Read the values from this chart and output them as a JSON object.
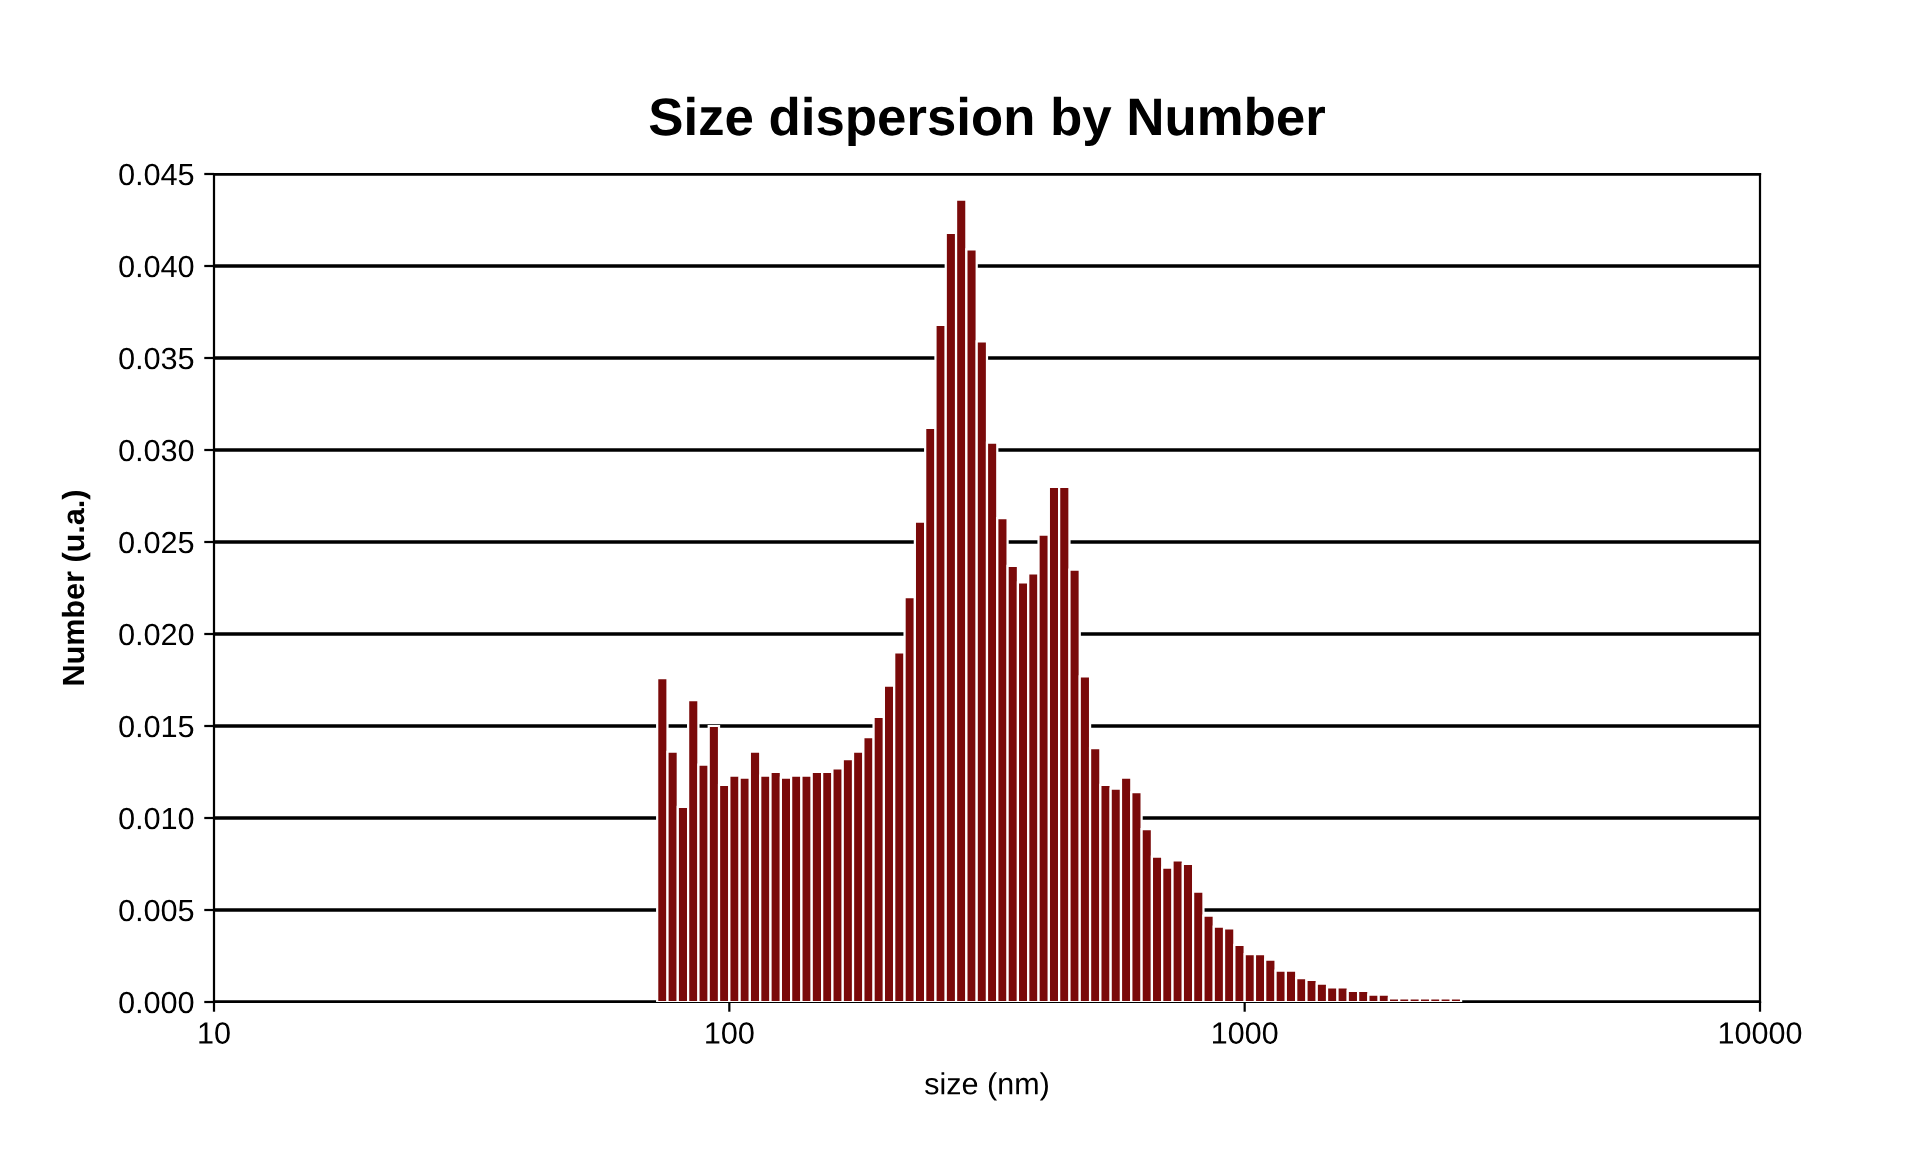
{
  "chart_data": {
    "type": "histogram",
    "title": "Size dispersion by Number",
    "xlabel": "size (nm)",
    "ylabel": "Number (u.a.)",
    "bins": [
      72.44,
      75.86,
      79.43,
      83.18,
      87.1,
      91.2,
      95.5,
      100,
      104.7,
      109.6,
      114.8,
      120.2,
      125.9,
      131.8,
      138.0,
      144.5,
      151.4,
      158.5,
      166.0,
      173.8,
      182.0,
      190.5,
      199.5,
      208.9,
      218.8,
      229.1,
      239.9,
      251.2,
      263.0,
      275.4,
      288.4,
      302.0,
      316.2,
      331.1,
      346.7,
      363.1,
      380.2,
      398.1,
      416.9,
      436.5,
      457.1,
      478.6,
      501.2,
      524.8,
      549.5,
      575.4,
      602.6,
      631.0,
      660.7,
      691.8,
      724.4,
      758.6,
      794.3,
      831.8,
      871.0,
      912.0,
      955.0,
      1000,
      1047,
      1096,
      1148,
      1202,
      1259,
      1318,
      1380,
      1445,
      1514,
      1585,
      1660,
      1738,
      1820,
      1905,
      1995,
      2089,
      2188,
      2291,
      2399,
      2512,
      2630
    ],
    "values": [
      0.0176,
      0.0136,
      0.0106,
      0.0164,
      0.0129,
      0.015,
      0.0118,
      0.0123,
      0.0122,
      0.0136,
      0.0123,
      0.0125,
      0.0122,
      0.0123,
      0.0123,
      0.0125,
      0.0125,
      0.0127,
      0.0132,
      0.0136,
      0.0144,
      0.0155,
      0.0172,
      0.019,
      0.022,
      0.0261,
      0.0312,
      0.0368,
      0.0418,
      0.0436,
      0.0409,
      0.0359,
      0.0304,
      0.0263,
      0.0237,
      0.0228,
      0.0233,
      0.0254,
      0.028,
      0.028,
      0.0235,
      0.0177,
      0.0138,
      0.0118,
      0.0116,
      0.0122,
      0.0114,
      0.0094,
      0.0079,
      0.0073,
      0.0077,
      0.0075,
      0.006,
      0.0047,
      0.0041,
      0.004,
      0.0031,
      0.0026,
      0.0026,
      0.0023,
      0.0017,
      0.0017,
      0.0013,
      0.0012,
      0.001,
      0.0008,
      0.0008,
      0.0006,
      0.0006,
      0.0004,
      0.0004,
      0.0002,
      0.0002,
      0.0002,
      0.0002,
      0.0002,
      0.0002,
      0.0002
    ],
    "color": "#7a0a0a",
    "log": "x",
    "xlim": [
      10,
      10000
    ],
    "xticks": [
      10,
      100,
      1000,
      10000
    ],
    "ylim": [
      0,
      0.045
    ],
    "yticks": [
      {
        "value": 0,
        "label": "0.000"
      },
      {
        "value": 0.005,
        "label": "0.005"
      },
      {
        "value": 0.01,
        "label": "0.010"
      },
      {
        "value": 0.015,
        "label": "0.015"
      },
      {
        "value": 0.02,
        "label": "0.020"
      },
      {
        "value": 0.025,
        "label": "0.025"
      },
      {
        "value": 0.03,
        "label": "0.030"
      },
      {
        "value": 0.035,
        "label": "0.035"
      },
      {
        "value": 0.04,
        "label": "0.040"
      },
      {
        "value": 0.045,
        "label": "0.045"
      }
    ],
    "grid": "y"
  }
}
